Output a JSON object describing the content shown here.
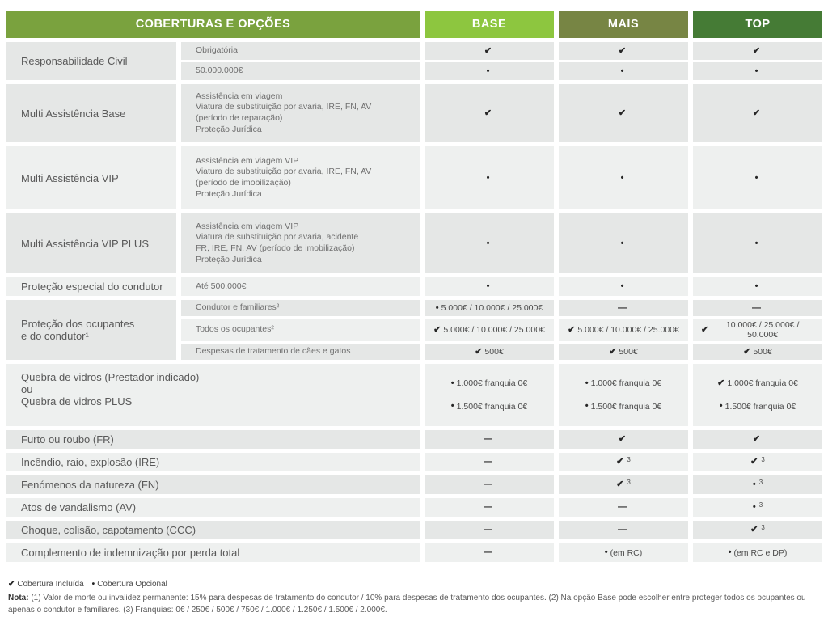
{
  "header": {
    "coverages_label": "COBERTURAS E OPÇÕES",
    "color": "#7aa23e",
    "plans": [
      {
        "label": "BASE",
        "color": "#8dc63f"
      },
      {
        "label": "MAIS",
        "color": "#778544"
      },
      {
        "label": "TOP",
        "color": "#457b35"
      }
    ]
  },
  "table": {
    "sections": [
      {
        "group": "Responsabilidade Civil",
        "rows": [
          {
            "label": "Obrigatória",
            "values": [
              {
                "mark": "✔",
                "text": "",
                "sup": ""
              },
              {
                "mark": "✔",
                "text": "",
                "sup": ""
              },
              {
                "mark": "✔",
                "text": "",
                "sup": ""
              }
            ]
          },
          {
            "label": "50.000.000€",
            "values": [
              {
                "mark": "•",
                "text": "",
                "sup": ""
              },
              {
                "mark": "•",
                "text": "",
                "sup": ""
              },
              {
                "mark": "•",
                "text": "",
                "sup": ""
              }
            ]
          }
        ]
      },
      {
        "group": "Multi Assistência Base",
        "detail": "Assistência em viagem\nViatura de substituição por avaria, IRE, FN, AV\n(período de reparação)\nProteção Jurídica",
        "values": [
          {
            "mark": "✔",
            "text": "",
            "sup": ""
          },
          {
            "mark": "✔",
            "text": "",
            "sup": ""
          },
          {
            "mark": "✔",
            "text": "",
            "sup": ""
          }
        ]
      },
      {
        "group": "Multi Assistência VIP",
        "detail": "Assistência em viagem VIP\nViatura de substituição por avaria, IRE, FN, AV\n(período de imobilização)\nProteção Jurídica",
        "values": [
          {
            "mark": "•",
            "text": "",
            "sup": ""
          },
          {
            "mark": "•",
            "text": "",
            "sup": ""
          },
          {
            "mark": "•",
            "text": "",
            "sup": ""
          }
        ]
      },
      {
        "group": "Multi Assistência VIP PLUS",
        "detail": "Assistência em viagem VIP\nViatura de substituição por avaria, acidente\nFR, IRE, FN, AV (período de imobilização)\nProteção Jurídica",
        "values": [
          {
            "mark": "•",
            "text": "",
            "sup": ""
          },
          {
            "mark": "•",
            "text": "",
            "sup": ""
          },
          {
            "mark": "•",
            "text": "",
            "sup": ""
          }
        ]
      },
      {
        "group": "Proteção especial do condutor",
        "detail": "Até 500.000€",
        "values": [
          {
            "mark": "•",
            "text": "",
            "sup": ""
          },
          {
            "mark": "•",
            "text": "",
            "sup": ""
          },
          {
            "mark": "•",
            "text": "",
            "sup": ""
          }
        ]
      },
      {
        "group": "Proteção dos ocupantes\ne do condutor¹",
        "rows": [
          {
            "label": "Condutor e familiares²",
            "values": [
              {
                "mark": "•",
                "text": "5.000€ / 10.000€ / 25.000€",
                "sup": ""
              },
              {
                "mark": "—",
                "text": "",
                "sup": ""
              },
              {
                "mark": "—",
                "text": "",
                "sup": ""
              }
            ]
          },
          {
            "label": "Todos os ocupantes²",
            "values": [
              {
                "mark": "✔",
                "text": "5.000€ / 10.000€ / 25.000€",
                "sup": ""
              },
              {
                "mark": "✔",
                "text": "5.000€ / 10.000€ / 25.000€",
                "sup": ""
              },
              {
                "mark": "✔",
                "text": "10.000€ / 25.000€ / 50.000€",
                "sup": ""
              }
            ]
          },
          {
            "label": "Despesas de tratamento de cães e gatos",
            "values": [
              {
                "mark": "✔",
                "text": "500€",
                "sup": ""
              },
              {
                "mark": "✔",
                "text": "500€",
                "sup": ""
              },
              {
                "mark": "✔",
                "text": "500€",
                "sup": ""
              }
            ]
          }
        ]
      },
      {
        "label": "Quebra de vidros (Prestador indicado)\nou\nQuebra de vidros PLUS",
        "values": [
          {
            "line1": {
              "mark": "•",
              "text": "1.000€ franquia 0€"
            },
            "line2": {
              "mark": "•",
              "text": "1.500€ franquia 0€"
            }
          },
          {
            "line1": {
              "mark": "•",
              "text": "1.000€ franquia 0€"
            },
            "line2": {
              "mark": "•",
              "text": "1.500€ franquia 0€"
            }
          },
          {
            "line1": {
              "mark": "✔",
              "text": "1.000€ franquia 0€"
            },
            "line2": {
              "mark": "•",
              "text": "1.500€ franquia 0€"
            }
          }
        ]
      },
      {
        "label": "Furto ou roubo (FR)",
        "values": [
          {
            "mark": "—",
            "text": "",
            "sup": ""
          },
          {
            "mark": "✔",
            "text": "",
            "sup": ""
          },
          {
            "mark": "✔",
            "text": "",
            "sup": ""
          }
        ]
      },
      {
        "label": "Incêndio, raio, explosão (IRE)",
        "values": [
          {
            "mark": "—",
            "text": "",
            "sup": ""
          },
          {
            "mark": "✔",
            "text": "",
            "sup": "3"
          },
          {
            "mark": "✔",
            "text": "",
            "sup": "3"
          }
        ]
      },
      {
        "label": "Fenómenos da natureza (FN)",
        "values": [
          {
            "mark": "—",
            "text": "",
            "sup": ""
          },
          {
            "mark": "✔",
            "text": "",
            "sup": "3"
          },
          {
            "mark": "•",
            "text": "",
            "sup": "3"
          }
        ]
      },
      {
        "label": "Atos de vandalismo (AV)",
        "values": [
          {
            "mark": "—",
            "text": "",
            "sup": ""
          },
          {
            "mark": "—",
            "text": "",
            "sup": ""
          },
          {
            "mark": "•",
            "text": "",
            "sup": "3"
          }
        ]
      },
      {
        "label": "Choque, colisão, capotamento (CCC)",
        "values": [
          {
            "mark": "—",
            "text": "",
            "sup": ""
          },
          {
            "mark": "—",
            "text": "",
            "sup": ""
          },
          {
            "mark": "✔",
            "text": "",
            "sup": "3"
          }
        ]
      },
      {
        "label": "Complemento de indemnização por perda total",
        "values": [
          {
            "mark": "—",
            "text": "",
            "sup": ""
          },
          {
            "mark": "•",
            "text": "(em RC)",
            "sup": ""
          },
          {
            "mark": "•",
            "text": "(em RC e DP)",
            "sup": ""
          }
        ]
      }
    ]
  },
  "legend": {
    "check": "✔",
    "included": "Cobertura Incluída",
    "dot": "•",
    "optional": "Cobertura Opcional"
  },
  "note": {
    "label": "Nota:",
    "text": "(1) Valor de morte ou invalidez permanente: 15% para despesas de tratamento do condutor / 10% para despesas de tratamento dos ocupantes. (2) Na opção Base pode escolher entre proteger todos os ocupantes ou apenas o condutor e familiares. (3) Franquias: 0€ / 250€ / 500€ / 750€ / 1.000€ / 1.250€ / 1.500€ / 2.000€."
  }
}
